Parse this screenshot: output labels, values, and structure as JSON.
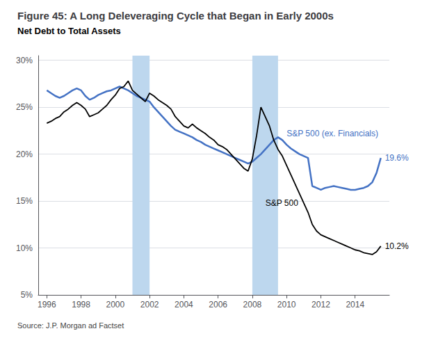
{
  "chart_data": {
    "type": "line",
    "title": "Figure 45: A Long Deleveraging Cycle that Began in Early 2000s",
    "subtitle": "Net Debt to Total Assets",
    "source": "Source: J.P. Morgan ad Factset",
    "grid": true,
    "bands": {
      "color": "#BDD7EE",
      "ranges": [
        [
          2001.0,
          2002.0
        ],
        [
          2008.0,
          2009.5
        ]
      ]
    },
    "xlim": [
      1995.5,
      2016.0
    ],
    "xticks": [
      1996,
      1998,
      2000,
      2002,
      2004,
      2006,
      2008,
      2010,
      2012,
      2014
    ],
    "ylim": [
      0.05,
      0.305
    ],
    "yticks": [
      {
        "value": 0.05,
        "label": "5%"
      },
      {
        "value": 0.1,
        "label": "10%"
      },
      {
        "value": 0.15,
        "label": "15%"
      },
      {
        "value": 0.2,
        "label": "20%"
      },
      {
        "value": 0.25,
        "label": "25%"
      },
      {
        "value": 0.3,
        "label": "30%"
      }
    ],
    "x": [
      1996.0,
      1996.25,
      1996.5,
      1996.75,
      1997.0,
      1997.25,
      1997.5,
      1997.75,
      1998.0,
      1998.25,
      1998.5,
      1998.75,
      1999.0,
      1999.25,
      1999.5,
      1999.75,
      2000.0,
      2000.25,
      2000.5,
      2000.75,
      2001.0,
      2001.25,
      2001.5,
      2001.75,
      2002.0,
      2002.25,
      2002.5,
      2002.75,
      2003.0,
      2003.25,
      2003.5,
      2003.75,
      2004.0,
      2004.25,
      2004.5,
      2004.75,
      2005.0,
      2005.25,
      2005.5,
      2005.75,
      2006.0,
      2006.25,
      2006.5,
      2006.75,
      2007.0,
      2007.25,
      2007.5,
      2007.75,
      2008.0,
      2008.25,
      2008.5,
      2008.75,
      2009.0,
      2009.25,
      2009.5,
      2009.75,
      2010.0,
      2010.25,
      2010.5,
      2010.75,
      2011.0,
      2011.25,
      2011.5,
      2011.75,
      2012.0,
      2012.25,
      2012.5,
      2012.75,
      2013.0,
      2013.25,
      2013.5,
      2013.75,
      2014.0,
      2014.25,
      2014.5,
      2014.75,
      2015.0,
      2015.25,
      2015.5
    ],
    "series": [
      {
        "name": "S&P 500 (ex. Financials)",
        "color": "#4472C4",
        "values": [
          0.268,
          0.265,
          0.262,
          0.26,
          0.262,
          0.265,
          0.268,
          0.27,
          0.268,
          0.262,
          0.258,
          0.26,
          0.263,
          0.265,
          0.267,
          0.268,
          0.27,
          0.272,
          0.27,
          0.268,
          0.265,
          0.262,
          0.26,
          0.258,
          0.256,
          0.25,
          0.245,
          0.24,
          0.235,
          0.23,
          0.226,
          0.224,
          0.222,
          0.22,
          0.218,
          0.215,
          0.213,
          0.21,
          0.208,
          0.206,
          0.204,
          0.202,
          0.2,
          0.198,
          0.196,
          0.194,
          0.192,
          0.19,
          0.192,
          0.196,
          0.2,
          0.205,
          0.21,
          0.215,
          0.218,
          0.215,
          0.21,
          0.206,
          0.203,
          0.2,
          0.198,
          0.196,
          0.166,
          0.164,
          0.162,
          0.164,
          0.165,
          0.166,
          0.165,
          0.164,
          0.163,
          0.162,
          0.162,
          0.163,
          0.164,
          0.166,
          0.17,
          0.18,
          0.196
        ],
        "value_labels": [
          null,
          null,
          null,
          null,
          null,
          null,
          null,
          null,
          null,
          null,
          null,
          null,
          null,
          null,
          null,
          null,
          null,
          null,
          null,
          null,
          null,
          null,
          null,
          null,
          null,
          null,
          null,
          null,
          null,
          null,
          null,
          null,
          null,
          null,
          null,
          null,
          null,
          null,
          null,
          null,
          null,
          null,
          null,
          null,
          null,
          null,
          null,
          null,
          null,
          null,
          null,
          null,
          null,
          null,
          null,
          null,
          null,
          null,
          null,
          null,
          null,
          null,
          null,
          null,
          null,
          null,
          null,
          null,
          null,
          null,
          null,
          null,
          null,
          null,
          null,
          null,
          null,
          null,
          "19.6%"
        ]
      },
      {
        "name": "S&P 500",
        "color": "#000000",
        "values": [
          0.233,
          0.235,
          0.238,
          0.24,
          0.245,
          0.248,
          0.252,
          0.255,
          0.252,
          0.248,
          0.24,
          0.242,
          0.244,
          0.248,
          0.252,
          0.258,
          0.263,
          0.27,
          0.272,
          0.278,
          0.268,
          0.264,
          0.26,
          0.256,
          0.265,
          0.262,
          0.258,
          0.255,
          0.252,
          0.248,
          0.24,
          0.235,
          0.23,
          0.228,
          0.232,
          0.228,
          0.225,
          0.222,
          0.218,
          0.215,
          0.21,
          0.208,
          0.205,
          0.2,
          0.195,
          0.19,
          0.185,
          0.182,
          0.195,
          0.22,
          0.25,
          0.24,
          0.23,
          0.215,
          0.205,
          0.198,
          0.188,
          0.178,
          0.168,
          0.158,
          0.148,
          0.138,
          0.125,
          0.118,
          0.114,
          0.112,
          0.11,
          0.108,
          0.106,
          0.104,
          0.102,
          0.1,
          0.098,
          0.097,
          0.095,
          0.094,
          0.093,
          0.096,
          0.102
        ],
        "value_labels": [
          null,
          null,
          null,
          null,
          null,
          null,
          null,
          null,
          null,
          null,
          null,
          null,
          null,
          null,
          null,
          null,
          null,
          null,
          null,
          null,
          null,
          null,
          null,
          null,
          null,
          null,
          null,
          null,
          null,
          null,
          null,
          null,
          null,
          null,
          null,
          null,
          null,
          null,
          null,
          null,
          null,
          null,
          null,
          null,
          null,
          null,
          null,
          null,
          null,
          null,
          null,
          null,
          null,
          null,
          null,
          null,
          null,
          null,
          null,
          null,
          null,
          null,
          null,
          null,
          null,
          null,
          null,
          null,
          null,
          null,
          null,
          null,
          null,
          null,
          null,
          null,
          null,
          null,
          "10.2%"
        ]
      }
    ]
  }
}
